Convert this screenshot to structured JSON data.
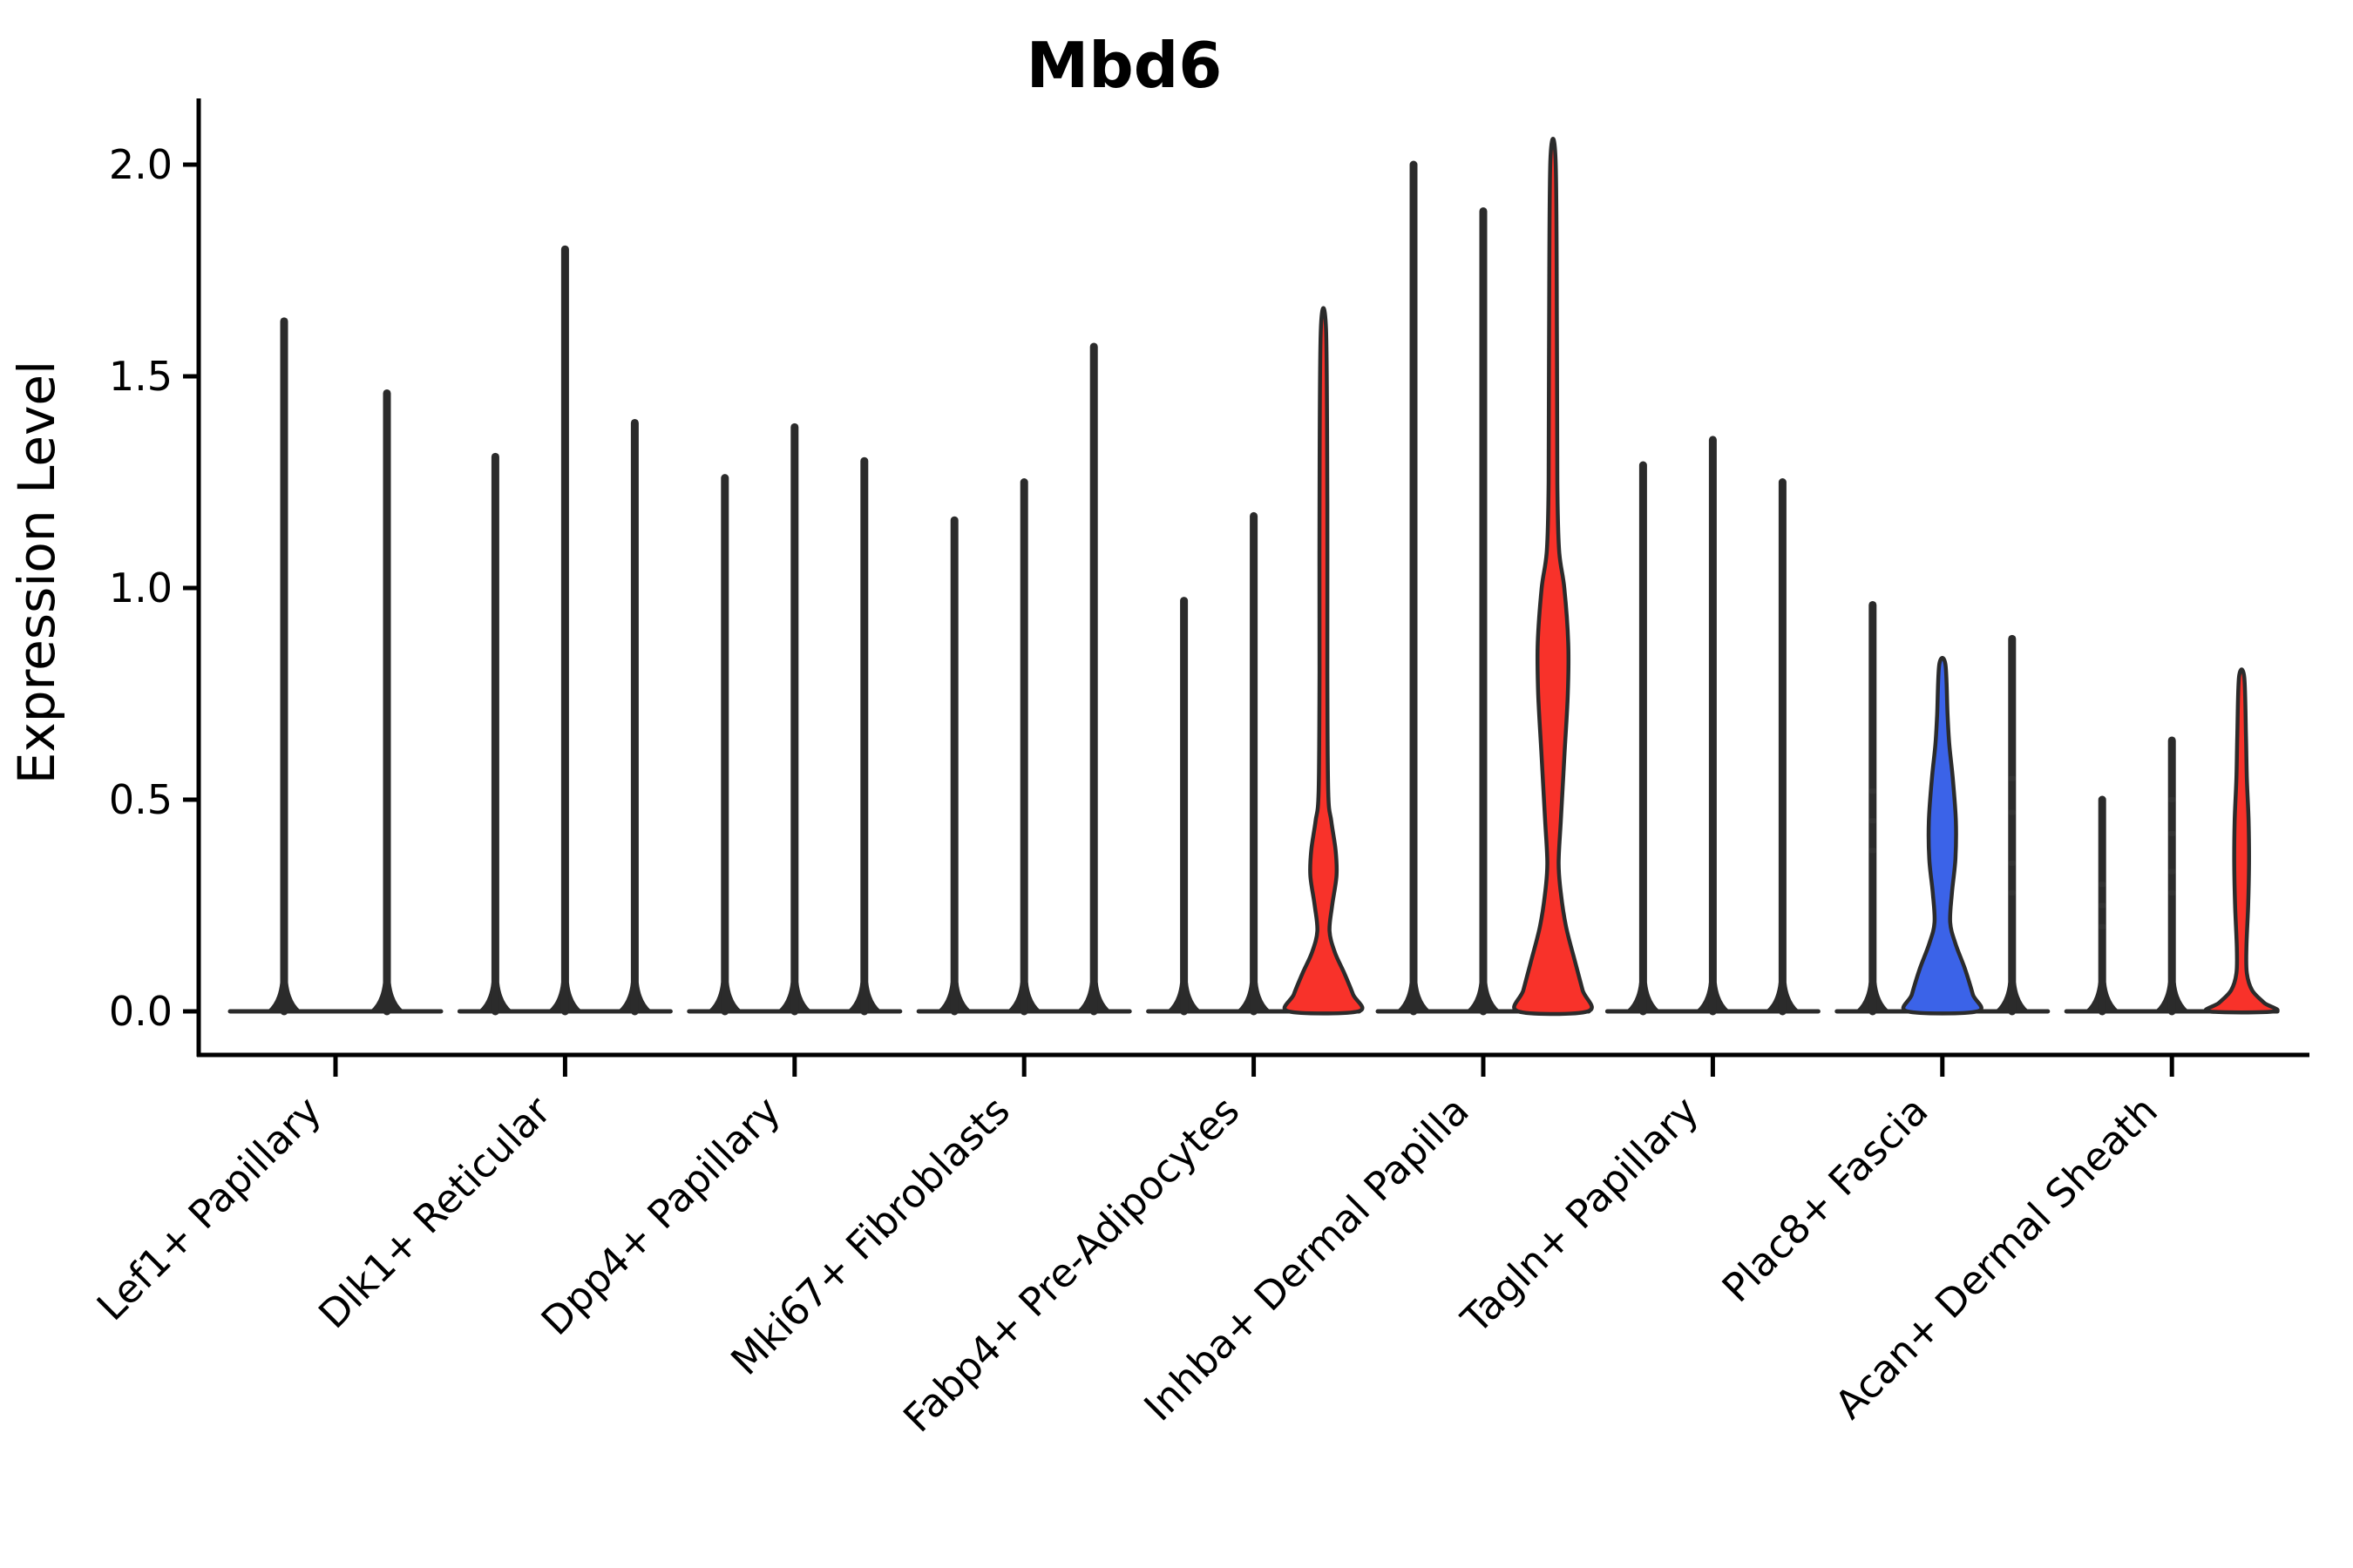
{
  "chart_data": {
    "type": "violin",
    "title": "Mbd6",
    "xlabel": "",
    "ylabel": "Expression Level",
    "ylim": [
      0.0,
      2.05
    ],
    "grid": false,
    "legend": "none",
    "yticks": [
      {
        "value": 0.0,
        "label": "0.0"
      },
      {
        "value": 0.5,
        "label": "0.5"
      },
      {
        "value": 1.0,
        "label": "1.0"
      },
      {
        "value": 1.5,
        "label": "1.5"
      },
      {
        "value": 2.0,
        "label": "2.0"
      }
    ],
    "categories": [
      "Lef1+ Papillary",
      "Dlk1+ Reticular",
      "Dpp4+ Papillary",
      "Mki67+ Fibroblasts",
      "Fabp4+ Pre-Adipocytes",
      "Inhba+ Dermal Papilla",
      "Tagln+ Papillary",
      "Plac8+ Fascia",
      "Acan+ Dermal Sheath"
    ],
    "groups": [
      {
        "category": "Lef1+ Papillary",
        "violins": [
          {
            "peak": 1.63,
            "color": "plain"
          },
          {
            "peak": 1.46,
            "color": "plain"
          }
        ]
      },
      {
        "category": "Dlk1+ Reticular",
        "violins": [
          {
            "peak": 1.31,
            "color": "plain"
          },
          {
            "peak": 1.8,
            "color": "plain"
          },
          {
            "peak": 1.39,
            "color": "plain"
          }
        ]
      },
      {
        "category": "Dpp4+ Papillary",
        "violins": [
          {
            "peak": 1.26,
            "color": "plain"
          },
          {
            "peak": 1.38,
            "color": "plain"
          },
          {
            "peak": 1.3,
            "color": "plain"
          }
        ]
      },
      {
        "category": "Mki67+ Fibroblasts",
        "violins": [
          {
            "peak": 1.16,
            "color": "plain"
          },
          {
            "peak": 1.25,
            "color": "plain"
          },
          {
            "peak": 1.57,
            "color": "plain"
          }
        ]
      },
      {
        "category": "Fabp4+ Pre-Adipocytes",
        "violins": [
          {
            "peak": 0.97,
            "color": "plain"
          },
          {
            "peak": 1.17,
            "color": "plain"
          },
          {
            "peak": 1.61,
            "color": "red",
            "profile": [
              [
                0,
                40
              ],
              [
                0.04,
                34
              ],
              [
                0.09,
                24
              ],
              [
                0.14,
                13
              ],
              [
                0.19,
                7
              ],
              [
                0.25,
                10
              ],
              [
                0.32,
                15
              ],
              [
                0.38,
                14
              ],
              [
                0.45,
                9
              ],
              [
                0.52,
                5.5
              ],
              [
                0.8,
                4.5
              ],
              [
                1.2,
                4.5
              ],
              [
                1.61,
                3
              ]
            ]
          }
        ]
      },
      {
        "category": "Inhba+ Dermal Papilla",
        "violins": [
          {
            "peak": 2.0,
            "color": "plain"
          },
          {
            "peak": 1.89,
            "color": "plain"
          },
          {
            "peak": 2.01,
            "color": "red",
            "profile": [
              [
                0,
                40
              ],
              [
                0.05,
                34
              ],
              [
                0.12,
                25
              ],
              [
                0.2,
                15
              ],
              [
                0.28,
                9
              ],
              [
                0.35,
                6.5
              ],
              [
                0.45,
                9
              ],
              [
                0.6,
                13
              ],
              [
                0.75,
                17
              ],
              [
                0.87,
                17.5
              ],
              [
                1.0,
                13
              ],
              [
                1.09,
                7
              ],
              [
                1.25,
                5
              ],
              [
                1.6,
                4.5
              ],
              [
                2.01,
                3
              ]
            ]
          }
        ]
      },
      {
        "category": "Tagln+ Papillary",
        "violins": [
          {
            "peak": 1.29,
            "color": "plain"
          },
          {
            "peak": 1.35,
            "color": "plain"
          },
          {
            "peak": 1.25,
            "color": "plain"
          }
        ]
      },
      {
        "category": "Plac8+ Fascia",
        "violins": [
          {
            "peak": 0.96,
            "color": "plain",
            "marks": [
              0.38,
              0.45,
              0.52
            ]
          },
          {
            "peak": 0.82,
            "color": "blue",
            "profile": [
              [
                0,
                40
              ],
              [
                0.04,
                35
              ],
              [
                0.1,
                26
              ],
              [
                0.16,
                15
              ],
              [
                0.21,
                9
              ],
              [
                0.28,
                11
              ],
              [
                0.36,
                15
              ],
              [
                0.45,
                15.5
              ],
              [
                0.55,
                12
              ],
              [
                0.63,
                8
              ],
              [
                0.7,
                6
              ],
              [
                0.82,
                3.5
              ]
            ]
          },
          {
            "peak": 0.88,
            "color": "plain",
            "marks": [
              0.28,
              0.35,
              0.47,
              0.55
            ]
          }
        ]
      },
      {
        "category": "Acan+ Dermal Sheath",
        "violins": [
          {
            "peak": 0.5,
            "color": "plain",
            "marks": [
              0.2,
              0.25,
              0.3
            ]
          },
          {
            "peak": 0.64,
            "color": "plain",
            "marks": [
              0.28,
              0.33,
              0.42,
              0.5
            ]
          },
          {
            "peak": 0.79,
            "color": "red",
            "profile": [
              [
                0,
                38
              ],
              [
                0.02,
                26
              ],
              [
                0.05,
                12
              ],
              [
                0.09,
                6
              ],
              [
                0.15,
                5.5
              ],
              [
                0.25,
                7.5
              ],
              [
                0.35,
                8.5
              ],
              [
                0.45,
                8
              ],
              [
                0.55,
                6
              ],
              [
                0.65,
                5
              ],
              [
                0.79,
                3
              ]
            ]
          }
        ]
      }
    ],
    "colors": {
      "red": "#f8322a",
      "blue": "#3b63e8",
      "outline": "#2b2b2b"
    }
  }
}
